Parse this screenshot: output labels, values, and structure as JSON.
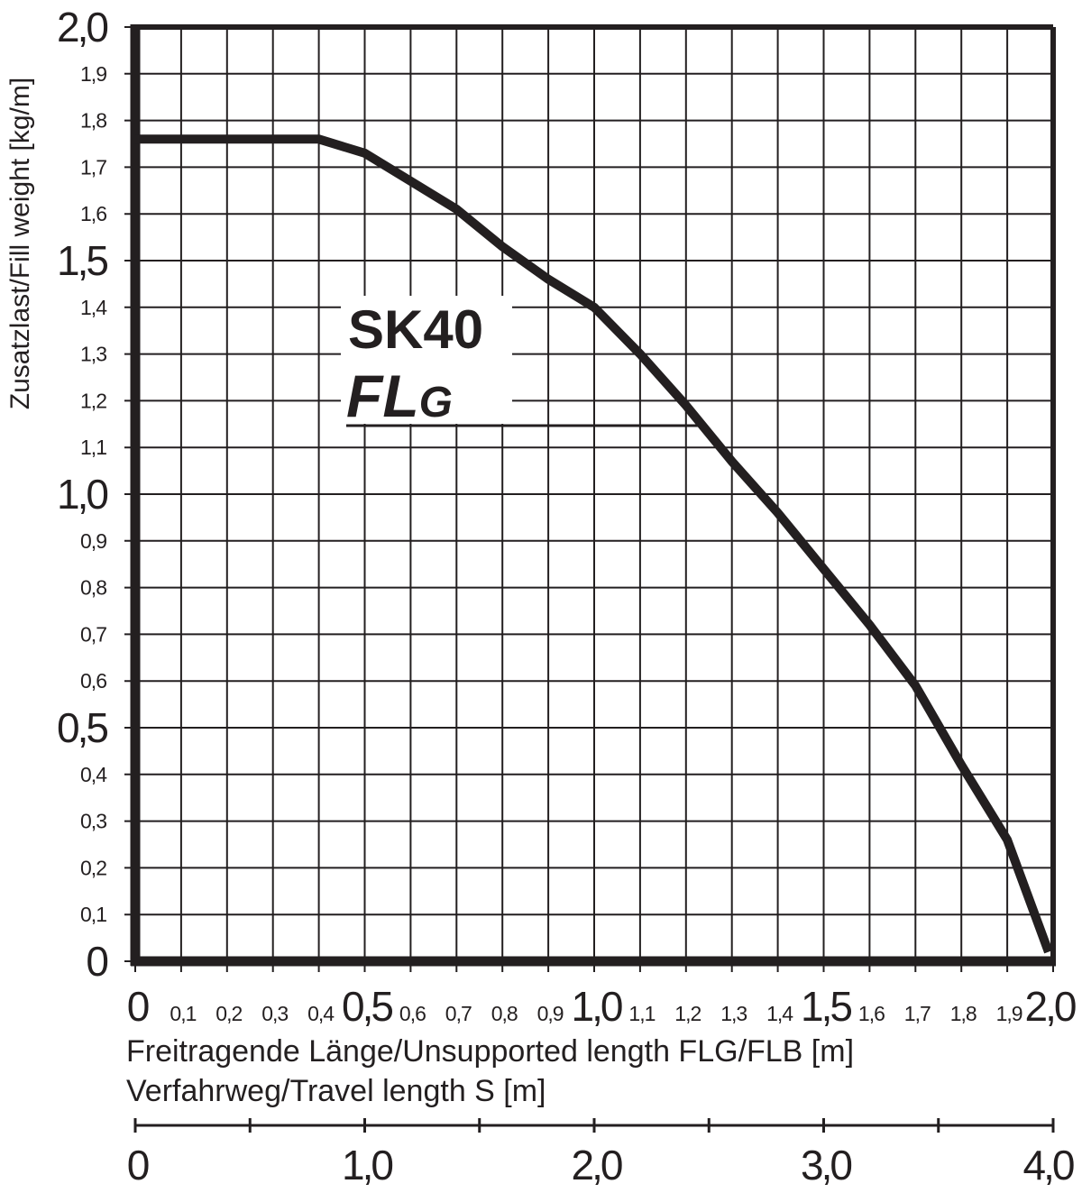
{
  "chart_data": {
    "type": "line",
    "y_label": "Zusatzlast/Fill weight [kg/m]",
    "x_label": "Freitragende Länge/Unsupported length FLG/FLB [m]",
    "x2_label": "Verfahrweg/Travel length S [m]",
    "annotation": {
      "title": "SK40",
      "label": "FL",
      "subscript": "G"
    },
    "x": [
      0,
      0.4,
      0.5,
      0.6,
      0.7,
      0.8,
      0.9,
      1.0,
      1.1,
      1.2,
      1.3,
      1.4,
      1.5,
      1.6,
      1.7,
      1.8,
      1.9,
      1.99
    ],
    "series": [
      {
        "color": "#231f20",
        "values": [
          1.76,
          1.76,
          1.73,
          1.67,
          1.61,
          1.53,
          1.46,
          1.4,
          1.3,
          1.19,
          1.07,
          0.96,
          0.84,
          0.72,
          0.59,
          0.42,
          0.26,
          0.02
        ]
      }
    ],
    "xlim": [
      0,
      2
    ],
    "ylim": [
      0,
      2
    ],
    "xticks": [
      0,
      {
        "value": 0.1,
        "label": "0,1"
      },
      {
        "value": 0.2,
        "label": "0,2"
      },
      {
        "value": 0.3,
        "label": "0,3"
      },
      {
        "value": 0.4,
        "label": "0,4"
      },
      {
        "value": 0.5,
        "label": "0,5"
      },
      {
        "value": 0.6,
        "label": "0,6"
      },
      {
        "value": 0.7,
        "label": "0,7"
      },
      {
        "value": 0.8,
        "label": "0,8"
      },
      {
        "value": 0.9,
        "label": "0,9"
      },
      {
        "value": 1.0,
        "label": "1,0"
      },
      {
        "value": 1.1,
        "label": "1,1"
      },
      {
        "value": 1.2,
        "label": "1,2"
      },
      {
        "value": 1.3,
        "label": "1,3"
      },
      {
        "value": 1.4,
        "label": "1,4"
      },
      {
        "value": 1.5,
        "label": "1,5"
      },
      {
        "value": 1.6,
        "label": "1,6"
      },
      {
        "value": 1.7,
        "label": "1,7"
      },
      {
        "value": 1.8,
        "label": "1,8"
      },
      {
        "value": 1.9,
        "label": "1,9"
      },
      {
        "value": 2.0,
        "label": "2,0"
      }
    ],
    "yticks": [
      0,
      {
        "value": 0.1,
        "label": "0,1"
      },
      {
        "value": 0.2,
        "label": "0,2"
      },
      {
        "value": 0.3,
        "label": "0,3"
      },
      {
        "value": 0.4,
        "label": "0,4"
      },
      {
        "value": 0.5,
        "label": "0,5"
      },
      {
        "value": 0.6,
        "label": "0,6"
      },
      {
        "value": 0.7,
        "label": "0,7"
      },
      {
        "value": 0.8,
        "label": "0,8"
      },
      {
        "value": 0.9,
        "label": "0,9"
      },
      {
        "value": 1.0,
        "label": "1,0"
      },
      {
        "value": 1.1,
        "label": "1,1"
      },
      {
        "value": 1.2,
        "label": "1,2"
      },
      {
        "value": 1.3,
        "label": "1,3"
      },
      {
        "value": 1.4,
        "label": "1,4"
      },
      {
        "value": 1.5,
        "label": "1,5"
      },
      {
        "value": 1.6,
        "label": "1,6"
      },
      {
        "value": 1.7,
        "label": "1,7"
      },
      {
        "value": 1.8,
        "label": "1,8"
      },
      {
        "value": 1.9,
        "label": "1,9"
      },
      {
        "value": 2.0,
        "label": "2,0"
      }
    ],
    "x2lim": [
      0,
      4
    ],
    "x2ticks": [
      0,
      {
        "value": 1,
        "label": "1,0"
      },
      {
        "value": 2,
        "label": "2,0"
      },
      {
        "value": 3,
        "label": "3,0"
      },
      {
        "value": 4,
        "label": "4,0"
      }
    ],
    "x2minor_ticks": [
      0.5,
      1.5,
      2.5,
      3.5
    ],
    "grid": true
  }
}
